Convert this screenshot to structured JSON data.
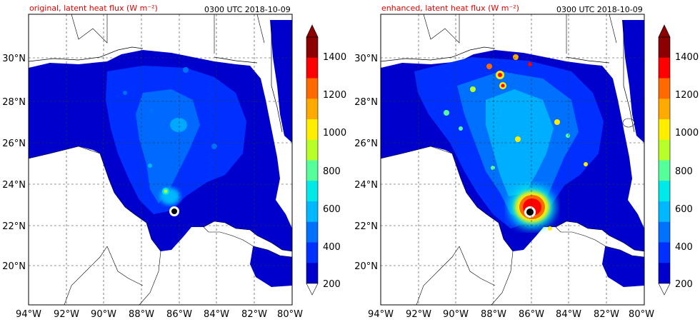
{
  "panels": [
    {
      "id": "original",
      "title_left": "original, latent heat flux (W m⁻²)",
      "title_right": "0300 UTC 2018-10-09",
      "x_ticks": [
        "94°W",
        "92°W",
        "90°W",
        "88°W",
        "86°W",
        "84°W",
        "82°W",
        "80°W"
      ],
      "y_ticks": [
        "30°N",
        "28°N",
        "26°N",
        "24°N",
        "22°N",
        "20°N"
      ]
    },
    {
      "id": "enhanced",
      "title_left": "enhanced, latent heat flux (W m⁻²)",
      "title_right": "0300 UTC 2018-10-09",
      "x_ticks": [
        "94°W",
        "92°W",
        "90°W",
        "88°W",
        "86°W",
        "84°W",
        "82°W",
        "80°W"
      ],
      "y_ticks": [
        "30°N",
        "28°N",
        "26°N",
        "24°N",
        "22°N",
        "20°N"
      ]
    }
  ],
  "colorbar": {
    "labels": [
      "1400",
      "1200",
      "1000",
      "800",
      "600",
      "400",
      "200"
    ],
    "colors": [
      "#8b0000",
      "#ff0000",
      "#ff6a00",
      "#ffaa00",
      "#ffee00",
      "#b8ff2a",
      "#55ff9a",
      "#00e8e8",
      "#00b8ff",
      "#0070ff",
      "#0030ff",
      "#0000cc"
    ]
  },
  "palette": {
    "deep": "#0000cc",
    "mid": "#0030ff",
    "light": "#0070ff",
    "cyan": "#00b8ff",
    "yellow": "#ffee00",
    "red": "#ff0000",
    "land_line": "#000000",
    "grid": "#333333"
  }
}
